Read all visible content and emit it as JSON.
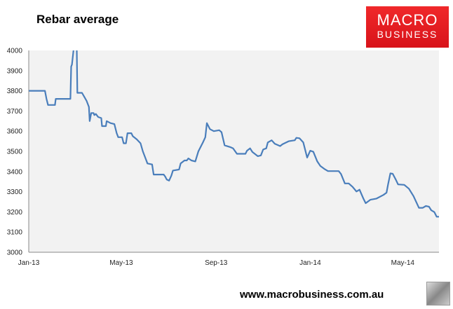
{
  "chart_data": {
    "type": "line",
    "title": "Rebar average",
    "xlabel": "",
    "ylabel": "",
    "x_unit": "days since Jan 1 2013",
    "xlim": [
      0,
      532
    ],
    "ylim": [
      3000,
      4000
    ],
    "yticks": [
      3000,
      3100,
      3200,
      3300,
      3400,
      3500,
      3600,
      3700,
      3800,
      3900,
      4000
    ],
    "xticks": [
      {
        "day": 0,
        "label": "Jan-13"
      },
      {
        "day": 120,
        "label": "May-13"
      },
      {
        "day": 243,
        "label": "Sep-13"
      },
      {
        "day": 365,
        "label": "Jan-14"
      },
      {
        "day": 485,
        "label": "May-14"
      }
    ],
    "grid": false,
    "legend": "none",
    "color": "#4a7ebb",
    "series": [
      {
        "name": "Rebar average",
        "points": [
          [
            0,
            3800
          ],
          [
            21,
            3800
          ],
          [
            23,
            3760
          ],
          [
            25,
            3730
          ],
          [
            34,
            3730
          ],
          [
            35,
            3760
          ],
          [
            54,
            3760
          ],
          [
            55,
            3920
          ],
          [
            56,
            3930
          ],
          [
            58,
            4000
          ],
          [
            59,
            4080
          ],
          [
            62,
            4080
          ],
          [
            63,
            3790
          ],
          [
            69,
            3790
          ],
          [
            72,
            3770
          ],
          [
            75,
            3750
          ],
          [
            78,
            3720
          ],
          [
            79,
            3650
          ],
          [
            81,
            3690
          ],
          [
            84,
            3690
          ],
          [
            85,
            3680
          ],
          [
            87,
            3685
          ],
          [
            90,
            3670
          ],
          [
            94,
            3665
          ],
          [
            95,
            3625
          ],
          [
            100,
            3625
          ],
          [
            101,
            3650
          ],
          [
            106,
            3640
          ],
          [
            111,
            3635
          ],
          [
            114,
            3590
          ],
          [
            116,
            3570
          ],
          [
            121,
            3570
          ],
          [
            123,
            3540
          ],
          [
            126,
            3540
          ],
          [
            128,
            3590
          ],
          [
            133,
            3590
          ],
          [
            135,
            3575
          ],
          [
            140,
            3560
          ],
          [
            145,
            3540
          ],
          [
            148,
            3500
          ],
          [
            151,
            3470
          ],
          [
            154,
            3440
          ],
          [
            160,
            3435
          ],
          [
            162,
            3385
          ],
          [
            175,
            3385
          ],
          [
            177,
            3375
          ],
          [
            179,
            3360
          ],
          [
            182,
            3355
          ],
          [
            185,
            3380
          ],
          [
            187,
            3405
          ],
          [
            195,
            3410
          ],
          [
            197,
            3440
          ],
          [
            202,
            3455
          ],
          [
            205,
            3455
          ],
          [
            207,
            3465
          ],
          [
            211,
            3455
          ],
          [
            216,
            3450
          ],
          [
            220,
            3500
          ],
          [
            226,
            3545
          ],
          [
            229,
            3570
          ],
          [
            231,
            3640
          ],
          [
            235,
            3610
          ],
          [
            240,
            3600
          ],
          [
            247,
            3605
          ],
          [
            250,
            3595
          ],
          [
            254,
            3530
          ],
          [
            262,
            3520
          ],
          [
            265,
            3515
          ],
          [
            270,
            3488
          ],
          [
            281,
            3488
          ],
          [
            283,
            3503
          ],
          [
            287,
            3515
          ],
          [
            290,
            3497
          ],
          [
            297,
            3476
          ],
          [
            301,
            3480
          ],
          [
            304,
            3509
          ],
          [
            308,
            3515
          ],
          [
            310,
            3544
          ],
          [
            315,
            3555
          ],
          [
            319,
            3538
          ],
          [
            326,
            3526
          ],
          [
            329,
            3535
          ],
          [
            337,
            3550
          ],
          [
            345,
            3555
          ],
          [
            347,
            3567
          ],
          [
            351,
            3565
          ],
          [
            356,
            3544
          ],
          [
            361,
            3469
          ],
          [
            365,
            3503
          ],
          [
            369,
            3498
          ],
          [
            374,
            3451
          ],
          [
            378,
            3428
          ],
          [
            384,
            3411
          ],
          [
            388,
            3402
          ],
          [
            402,
            3402
          ],
          [
            405,
            3388
          ],
          [
            410,
            3341
          ],
          [
            415,
            3341
          ],
          [
            420,
            3324
          ],
          [
            425,
            3301
          ],
          [
            429,
            3310
          ],
          [
            434,
            3266
          ],
          [
            437,
            3243
          ],
          [
            443,
            3260
          ],
          [
            451,
            3266
          ],
          [
            460,
            3284
          ],
          [
            464,
            3295
          ],
          [
            466,
            3336
          ],
          [
            469,
            3391
          ],
          [
            472,
            3389
          ],
          [
            476,
            3360
          ],
          [
            479,
            3336
          ],
          [
            487,
            3334
          ],
          [
            493,
            3315
          ],
          [
            499,
            3278
          ],
          [
            506,
            3220
          ],
          [
            511,
            3220
          ],
          [
            515,
            3229
          ],
          [
            519,
            3226
          ],
          [
            522,
            3208
          ],
          [
            526,
            3199
          ],
          [
            529,
            3176
          ],
          [
            532,
            3176
          ]
        ]
      }
    ]
  },
  "logo": {
    "line1": "MACRO",
    "line2": "BUSINESS"
  },
  "footer": {
    "url": "www.macrobusiness.com.au"
  }
}
